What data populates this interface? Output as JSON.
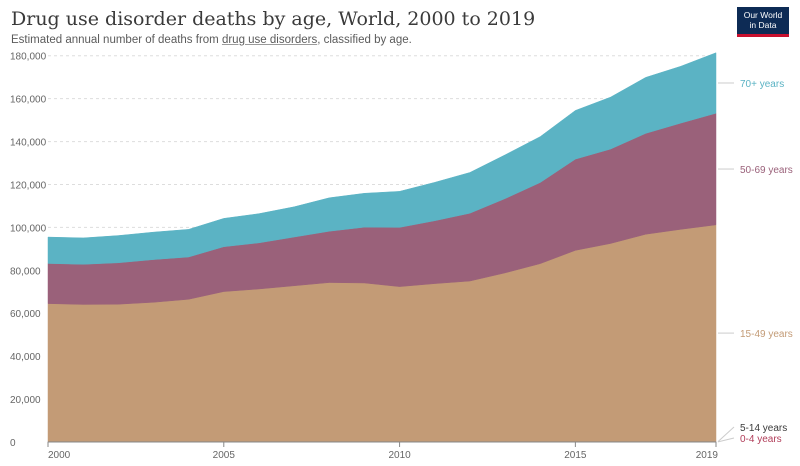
{
  "header": {
    "title": "Drug use disorder deaths by age, World, 2000 to 2019",
    "subtitle_before": "Estimated annual number of deaths from ",
    "subtitle_link": "drug use disorders",
    "subtitle_after": ", classified by age."
  },
  "logo": {
    "line1": "Our World",
    "line2": "in Data"
  },
  "chart_data": {
    "type": "area",
    "stacked": true,
    "x": [
      2000,
      2001,
      2002,
      2003,
      2004,
      2005,
      2006,
      2007,
      2008,
      2009,
      2010,
      2011,
      2012,
      2013,
      2014,
      2015,
      2016,
      2017,
      2018,
      2019
    ],
    "x_ticks": [
      "2000",
      "2005",
      "2010",
      "2015",
      "2019"
    ],
    "y_ticks": [
      "0",
      "20,000",
      "40,000",
      "60,000",
      "80,000",
      "100,000",
      "120,000",
      "140,000",
      "160,000",
      "180,000"
    ],
    "ylim": [
      0,
      185000
    ],
    "grid": true,
    "legend": "right",
    "series": [
      {
        "name": "0-4 years",
        "color": "#b13d59",
        "values": [
          100,
          100,
          100,
          100,
          100,
          100,
          100,
          100,
          100,
          100,
          100,
          100,
          100,
          100,
          100,
          100,
          100,
          100,
          100,
          100
        ]
      },
      {
        "name": "5-14 years",
        "color": "#1d3d63",
        "values": [
          200,
          200,
          200,
          200,
          200,
          200,
          200,
          200,
          200,
          200,
          200,
          200,
          200,
          200,
          200,
          200,
          200,
          200,
          200,
          200
        ]
      },
      {
        "name": "15-49 years",
        "color": "#c39b76",
        "values": [
          64200,
          63800,
          63900,
          64800,
          66200,
          69800,
          71000,
          72500,
          74000,
          73800,
          72100,
          73500,
          74700,
          78500,
          82800,
          89000,
          92200,
          96500,
          98800,
          100900
        ]
      },
      {
        "name": "50-69 years",
        "color": "#9a617a",
        "values": [
          18700,
          18700,
          19300,
          19900,
          19700,
          20900,
          21500,
          22700,
          23900,
          26000,
          27600,
          29300,
          31600,
          34600,
          37800,
          42500,
          44000,
          47000,
          49500,
          52000
        ]
      },
      {
        "name": "70+ years",
        "color": "#5bb3c4",
        "values": [
          12300,
          12300,
          12700,
          12800,
          12900,
          13200,
          13600,
          14100,
          15600,
          15800,
          16800,
          17900,
          19000,
          20400,
          21400,
          22700,
          24200,
          26100,
          26500,
          28200
        ]
      }
    ]
  }
}
